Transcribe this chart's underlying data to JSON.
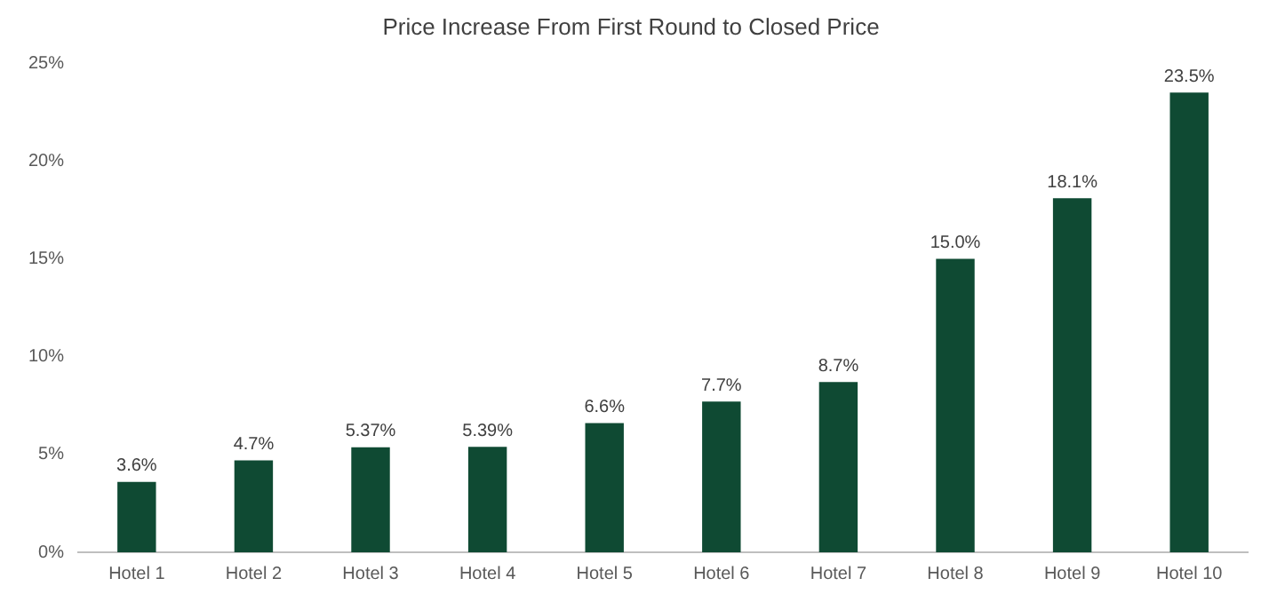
{
  "chart_data": {
    "type": "bar",
    "title": "Price Increase From First Round to Closed Price",
    "categories": [
      "Hotel 1",
      "Hotel 2",
      "Hotel 3",
      "Hotel 4",
      "Hotel 5",
      "Hotel 6",
      "Hotel 7",
      "Hotel 8",
      "Hotel 9",
      "Hotel 10"
    ],
    "values": [
      3.6,
      4.7,
      5.37,
      5.39,
      6.6,
      7.7,
      8.7,
      15.0,
      18.1,
      23.5
    ],
    "value_labels": [
      "3.6%",
      "4.7%",
      "5.37%",
      "5.39%",
      "6.6%",
      "7.7%",
      "8.7%",
      "15.0%",
      "18.1%",
      "23.5%"
    ],
    "color": "#0f4a33",
    "ylim": [
      0,
      25
    ],
    "yticks": [
      {
        "value": 0,
        "label": "0%"
      },
      {
        "value": 5,
        "label": "5%"
      },
      {
        "value": 10,
        "label": "10%"
      },
      {
        "value": 15,
        "label": "15%"
      },
      {
        "value": 20,
        "label": "20%"
      },
      {
        "value": 25,
        "label": "25%"
      }
    ],
    "grid": false,
    "legend": false
  }
}
